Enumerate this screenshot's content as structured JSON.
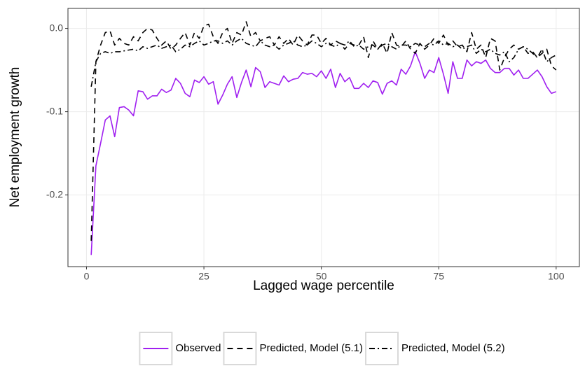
{
  "chart_data": {
    "type": "line",
    "x_label": "Lagged wage percentile",
    "y_label": "Net employment growth",
    "x": [
      1,
      2,
      3,
      4,
      5,
      6,
      7,
      8,
      9,
      10,
      11,
      12,
      13,
      14,
      15,
      16,
      17,
      18,
      19,
      20,
      21,
      22,
      23,
      24,
      25,
      26,
      27,
      28,
      29,
      30,
      31,
      32,
      33,
      34,
      35,
      36,
      37,
      38,
      39,
      40,
      41,
      42,
      43,
      44,
      45,
      46,
      47,
      48,
      49,
      50,
      51,
      52,
      53,
      54,
      55,
      56,
      57,
      58,
      59,
      60,
      61,
      62,
      63,
      64,
      65,
      66,
      67,
      68,
      69,
      70,
      71,
      72,
      73,
      74,
      75,
      76,
      77,
      78,
      79,
      80,
      81,
      82,
      83,
      84,
      85,
      86,
      87,
      88,
      89,
      90,
      91,
      92,
      93,
      94,
      95,
      96,
      97,
      98,
      99,
      100
    ],
    "xlim": [
      -3.95,
      104.95
    ],
    "xticks": [
      0,
      25,
      50,
      75,
      100
    ],
    "ylim": [
      -0.286,
      0.024
    ],
    "yticks": [
      {
        "value": 0,
        "label": "0.0"
      },
      -0.1,
      -0.2
    ],
    "grid": true,
    "legend": "bottom",
    "series": [
      {
        "name": "Observed",
        "color": "#a020f0",
        "linestyle": "solid",
        "values": [
          -0.272,
          -0.165,
          -0.138,
          -0.11,
          -0.105,
          -0.13,
          -0.095,
          -0.094,
          -0.098,
          -0.105,
          -0.075,
          -0.076,
          -0.085,
          -0.081,
          -0.081,
          -0.073,
          -0.077,
          -0.074,
          -0.06,
          -0.066,
          -0.078,
          -0.082,
          -0.062,
          -0.065,
          -0.058,
          -0.067,
          -0.064,
          -0.091,
          -0.08,
          -0.067,
          -0.058,
          -0.083,
          -0.065,
          -0.05,
          -0.07,
          -0.047,
          -0.052,
          -0.071,
          -0.064,
          -0.066,
          -0.068,
          -0.057,
          -0.064,
          -0.061,
          -0.06,
          -0.053,
          -0.055,
          -0.054,
          -0.058,
          -0.051,
          -0.06,
          -0.049,
          -0.071,
          -0.054,
          -0.064,
          -0.059,
          -0.072,
          -0.072,
          -0.066,
          -0.071,
          -0.063,
          -0.065,
          -0.079,
          -0.066,
          -0.063,
          -0.068,
          -0.049,
          -0.055,
          -0.045,
          -0.028,
          -0.042,
          -0.06,
          -0.05,
          -0.053,
          -0.035,
          -0.055,
          -0.078,
          -0.04,
          -0.06,
          -0.06,
          -0.038,
          -0.045,
          -0.04,
          -0.042,
          -0.038,
          -0.048,
          -0.053,
          -0.053,
          -0.048,
          -0.048,
          -0.056,
          -0.05,
          -0.06,
          -0.06,
          -0.055,
          -0.05,
          -0.058,
          -0.07,
          -0.078,
          -0.076
        ]
      },
      {
        "name": "Predicted, Model (5.1)",
        "color": "#000000",
        "linestyle": "dashed",
        "values": [
          -0.255,
          -0.04,
          -0.02,
          -0.005,
          -0.003,
          -0.02,
          -0.012,
          -0.018,
          -0.02,
          -0.01,
          -0.015,
          -0.005,
          0.0,
          -0.002,
          -0.012,
          -0.02,
          -0.015,
          -0.025,
          -0.02,
          -0.012,
          -0.005,
          -0.02,
          -0.005,
          -0.012,
          0.003,
          0.005,
          -0.01,
          -0.018,
          -0.005,
          0.0,
          -0.018,
          -0.005,
          -0.008,
          0.008,
          -0.01,
          -0.005,
          -0.015,
          -0.012,
          -0.01,
          -0.02,
          -0.01,
          -0.018,
          -0.012,
          -0.02,
          -0.008,
          -0.015,
          -0.02,
          -0.008,
          -0.008,
          -0.018,
          -0.012,
          -0.02,
          -0.015,
          -0.018,
          -0.025,
          -0.018,
          -0.02,
          -0.02,
          -0.01,
          -0.035,
          -0.015,
          -0.025,
          -0.018,
          -0.03,
          -0.005,
          -0.02,
          -0.022,
          -0.015,
          -0.025,
          -0.03,
          -0.018,
          -0.025,
          -0.02,
          -0.012,
          -0.018,
          -0.008,
          -0.02,
          -0.015,
          -0.022,
          -0.02,
          -0.028,
          -0.005,
          -0.025,
          -0.02,
          -0.035,
          -0.012,
          -0.015,
          -0.05,
          -0.035,
          -0.025,
          -0.02,
          -0.025,
          -0.022,
          -0.03,
          -0.028,
          -0.035,
          -0.03,
          -0.025,
          -0.045,
          -0.05
        ]
      },
      {
        "name": "Predicted, Model (5.2)",
        "color": "#000000",
        "linestyle": "dashdot",
        "values": [
          -0.07,
          -0.04,
          -0.03,
          -0.028,
          -0.03,
          -0.028,
          -0.028,
          -0.027,
          -0.026,
          -0.025,
          -0.027,
          -0.022,
          -0.024,
          -0.022,
          -0.02,
          -0.024,
          -0.022,
          -0.02,
          -0.028,
          -0.025,
          -0.02,
          -0.022,
          -0.018,
          -0.015,
          -0.02,
          -0.018,
          -0.015,
          -0.015,
          -0.018,
          -0.015,
          -0.02,
          -0.015,
          -0.012,
          -0.018,
          -0.02,
          -0.022,
          -0.015,
          -0.02,
          -0.022,
          -0.02,
          -0.025,
          -0.02,
          -0.018,
          -0.015,
          -0.02,
          -0.022,
          -0.02,
          -0.015,
          -0.018,
          -0.022,
          -0.018,
          -0.02,
          -0.022,
          -0.018,
          -0.02,
          -0.015,
          -0.022,
          -0.02,
          -0.025,
          -0.022,
          -0.02,
          -0.025,
          -0.02,
          -0.018,
          -0.022,
          -0.025,
          -0.02,
          -0.02,
          -0.022,
          -0.018,
          -0.02,
          -0.022,
          -0.018,
          -0.02,
          -0.015,
          -0.02,
          -0.018,
          -0.022,
          -0.02,
          -0.025,
          -0.022,
          -0.02,
          -0.03,
          -0.025,
          -0.028,
          -0.025,
          -0.03,
          -0.032,
          -0.028,
          -0.04,
          -0.035,
          -0.025,
          -0.022,
          -0.025,
          -0.03,
          -0.035,
          -0.025,
          -0.04,
          -0.035,
          -0.032
        ]
      }
    ]
  }
}
